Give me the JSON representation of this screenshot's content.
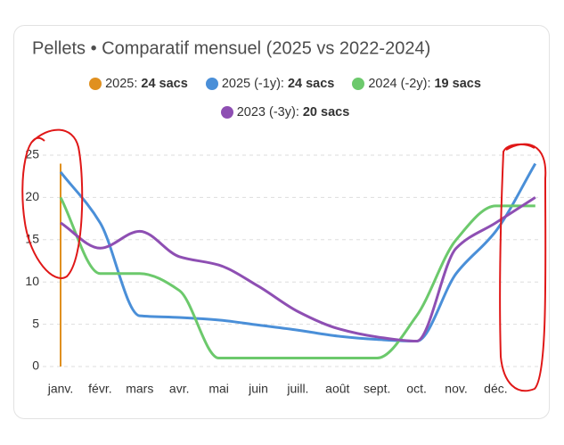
{
  "chart_data": {
    "type": "line",
    "title": "Pellets • Comparatif mensuel (2025 vs 2022-2024)",
    "categories": [
      "janv.",
      "févr.",
      "mars",
      "avr.",
      "mai",
      "juin",
      "juill.",
      "août",
      "sept.",
      "oct.",
      "nov.",
      "déc.",
      null
    ],
    "series": [
      {
        "name": "2025",
        "total": "24 sacs",
        "color": "#e0901f",
        "values": [
          24,
          null,
          null,
          null,
          null,
          null,
          null,
          null,
          null,
          null,
          null,
          null,
          null
        ]
      },
      {
        "name": "2025 (-1y)",
        "total": "24 sacs",
        "color": "#4a8fd8",
        "values": [
          23,
          17,
          6,
          5.8,
          5.5,
          4.9,
          4.3,
          3.6,
          3.2,
          3,
          11,
          16,
          24
        ]
      },
      {
        "name": "2024 (-2y)",
        "total": "19 sacs",
        "color": "#6cc96c",
        "values": [
          20,
          11,
          11,
          9,
          1,
          1,
          1,
          1,
          1,
          6,
          15,
          19,
          19
        ]
      },
      {
        "name": "2023 (-3y)",
        "total": "20 sacs",
        "color": "#8e4fb3",
        "values": [
          17,
          14,
          16,
          13,
          12,
          9.5,
          6.5,
          4.5,
          3.5,
          3,
          14,
          17,
          20
        ]
      }
    ],
    "ylim": [
      0,
      25
    ],
    "yticks": [
      0,
      5,
      10,
      15,
      20,
      25
    ],
    "grid": true
  }
}
